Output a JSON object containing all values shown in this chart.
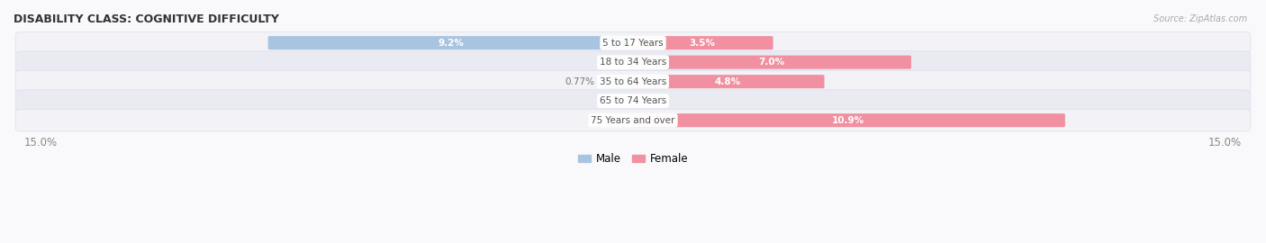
{
  "title": "DISABILITY CLASS: COGNITIVE DIFFICULTY",
  "source": "Source: ZipAtlas.com",
  "categories": [
    "5 to 17 Years",
    "18 to 34 Years",
    "35 to 64 Years",
    "65 to 74 Years",
    "75 Years and over"
  ],
  "male_values": [
    9.2,
    0.0,
    0.77,
    0.0,
    0.0
  ],
  "female_values": [
    3.5,
    7.0,
    4.8,
    0.0,
    10.9
  ],
  "max_val": 15.0,
  "male_color": "#a8c4e0",
  "female_color": "#f090a0",
  "male_label_color": "#ffffff",
  "female_label_color": "#ffffff",
  "row_bg_color_light": "#f2f2f7",
  "row_bg_color_dark": "#eaeaf2",
  "label_color_dark": "#777777",
  "center_label_color": "#555555",
  "title_color": "#333333",
  "axis_label_color": "#888888",
  "legend_male_color": "#a8c4e0",
  "legend_female_color": "#f090a0",
  "fig_bg_color": "#f9f9fb"
}
